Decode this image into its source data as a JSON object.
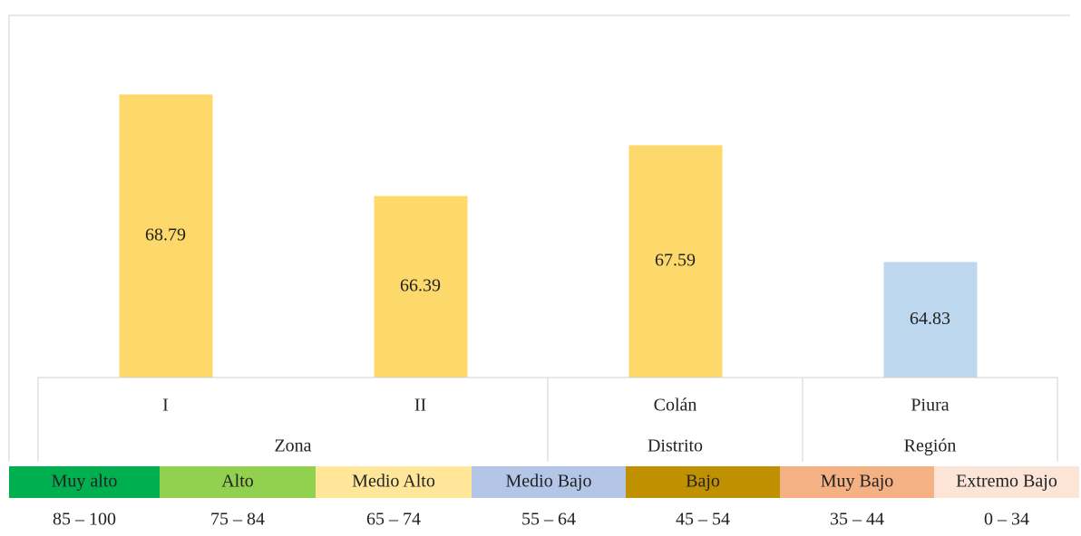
{
  "chart_data": {
    "type": "bar",
    "categories": [
      "I",
      "II",
      "Colán",
      "Piura"
    ],
    "values": [
      68.79,
      66.39,
      67.59,
      64.83
    ],
    "colors": [
      "#fdd96b",
      "#fdd96b",
      "#fdd96b",
      "#bdd7ee"
    ],
    "groups": [
      {
        "name": "Zona",
        "span": 2
      },
      {
        "name": "Distrito",
        "span": 1
      },
      {
        "name": "Región",
        "span": 1
      }
    ],
    "ylim": [
      62.1,
      70.66
    ],
    "legend": [
      {
        "label": "Muy alto",
        "range": "85 – 100",
        "color": "#00b050"
      },
      {
        "label": "Alto",
        "range": "75 – 84",
        "color": "#92d050"
      },
      {
        "label": "Medio Alto",
        "range": "65 – 74",
        "color": "#ffe699"
      },
      {
        "label": "Medio Bajo",
        "range": "55 – 64",
        "color": "#b4c6e7"
      },
      {
        "label": "Bajo",
        "range": "45 – 54",
        "color": "#bf9000"
      },
      {
        "label": "Muy Bajo",
        "range": "35 – 44",
        "color": "#f4b183"
      },
      {
        "label": "Extremo Bajo",
        "range": "0 – 34",
        "color": "#fce4d6"
      }
    ]
  }
}
